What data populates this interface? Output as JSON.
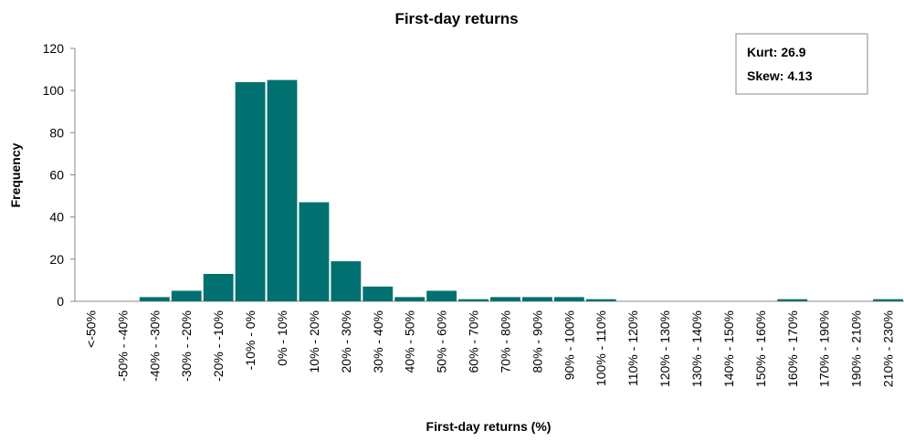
{
  "chart_data": {
    "type": "bar",
    "title": "First-day returns",
    "x_label": "First-day returns (%)",
    "y_label": "Frequency",
    "annotations": [
      "Kurt: 26.9",
      "Skew: 4.13"
    ],
    "categories": [
      "<-50%",
      "-50% - -40%",
      "-40% - -30%",
      "-30% - -20%",
      "-20% - -10%",
      "-10% - 0%",
      "0% - 10%",
      "10% - 20%",
      "20% - 30%",
      "30% - 40%",
      "40% - 50%",
      "50% - 60%",
      "60% - 70%",
      "70% - 80%",
      "80% - 90%",
      "90% - 100%",
      "100% - 110%",
      "110% - 120%",
      "120% - 130%",
      "130% - 140%",
      "140% - 150%",
      "150% - 160%",
      "160% - 170%",
      "170% - 190%",
      "190% - 210%",
      "210% - 230%"
    ],
    "values": [
      0,
      0,
      2,
      5,
      13,
      104,
      105,
      47,
      19,
      7,
      2,
      5,
      1,
      2,
      2,
      2,
      1,
      0,
      0,
      0,
      0,
      0,
      1,
      0,
      0,
      1
    ],
    "color": "#007070",
    "ylim": [
      0,
      120
    ],
    "yticks": [
      0,
      20,
      40,
      60,
      80,
      100,
      120
    ],
    "grid": false
  }
}
